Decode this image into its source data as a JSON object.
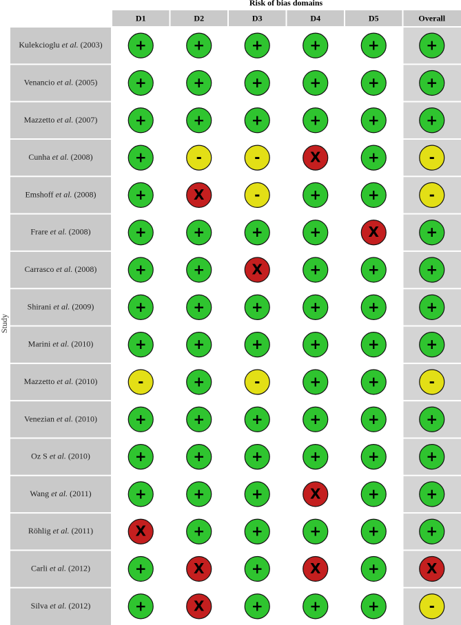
{
  "header": {
    "title": "Risk of bias domains",
    "y_label": "Study",
    "columns": [
      "D1",
      "D2",
      "D3",
      "D4",
      "D5",
      "Overall"
    ]
  },
  "colors": {
    "+": "#2fc42f",
    "-": "#e3df16",
    "X": "#c41f1f"
  },
  "rows": [
    {
      "author": "Kulekcioglu",
      "etal": "et al.",
      "year": "(2003)",
      "judgements": [
        "+",
        "+",
        "+",
        "+",
        "+",
        "+"
      ]
    },
    {
      "author": "Venancio",
      "etal": "et al.",
      "year": "(2005)",
      "judgements": [
        "+",
        "+",
        "+",
        "+",
        "+",
        "+"
      ]
    },
    {
      "author": "Mazzetto",
      "etal": "et al.",
      "year": "(2007)",
      "judgements": [
        "+",
        "+",
        "+",
        "+",
        "+",
        "+"
      ]
    },
    {
      "author": "Cunha",
      "etal": "et al.",
      "year": "(2008)",
      "judgements": [
        "+",
        "-",
        "-",
        "X",
        "+",
        "-"
      ]
    },
    {
      "author": "Emshoff",
      "etal": "et al.",
      "year": "(2008)",
      "judgements": [
        "+",
        "X",
        "-",
        "+",
        "+",
        "-"
      ]
    },
    {
      "author": "Frare",
      "etal": "et al.",
      "year": "(2008)",
      "judgements": [
        "+",
        "+",
        "+",
        "+",
        "X",
        "+"
      ]
    },
    {
      "author": "Carrasco",
      "etal": "et al.",
      "year": "(2008)",
      "judgements": [
        "+",
        "+",
        "X",
        "+",
        "+",
        "+"
      ]
    },
    {
      "author": "Shirani",
      "etal": "et al.",
      "year": "(2009)",
      "judgements": [
        "+",
        "+",
        "+",
        "+",
        "+",
        "+"
      ]
    },
    {
      "author": "Marini",
      "etal": "et al.",
      "year": "(2010)",
      "judgements": [
        "+",
        "+",
        "+",
        "+",
        "+",
        "+"
      ]
    },
    {
      "author": "Mazzetto",
      "etal": "et al.",
      "year": "(2010)",
      "judgements": [
        "-",
        "+",
        "-",
        "+",
        "+",
        "-"
      ]
    },
    {
      "author": "Venezian",
      "etal": "et al.",
      "year": "(2010)",
      "judgements": [
        "+",
        "+",
        "+",
        "+",
        "+",
        "+"
      ]
    },
    {
      "author": "Oz S",
      "etal": "et al.",
      "year": "(2010)",
      "judgements": [
        "+",
        "+",
        "+",
        "+",
        "+",
        "+"
      ]
    },
    {
      "author": "Wang",
      "etal": "et al.",
      "year": "(2011)",
      "judgements": [
        "+",
        "+",
        "+",
        "X",
        "+",
        "+"
      ]
    },
    {
      "author": "Röhlig",
      "etal": "et al.",
      "year": "(2011)",
      "judgements": [
        "X",
        "+",
        "+",
        "+",
        "+",
        "+"
      ]
    },
    {
      "author": "Carli",
      "etal": "et al.",
      "year": "(2012)",
      "judgements": [
        "+",
        "X",
        "+",
        "X",
        "+",
        "X"
      ]
    },
    {
      "author": "Silva",
      "etal": "et al.",
      "year": "(2012)",
      "judgements": [
        "+",
        "X",
        "+",
        "+",
        "+",
        "-"
      ]
    }
  ]
}
